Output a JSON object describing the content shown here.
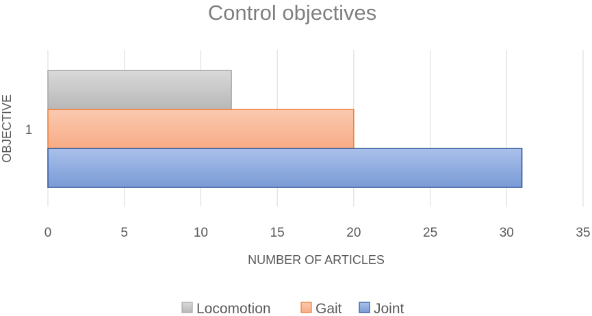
{
  "chart_data": {
    "type": "bar",
    "orientation": "horizontal",
    "title": "Control objectives",
    "xlabel": "NUMBER OF ARTICLES",
    "ylabel": "OBJECTIVE",
    "categories": [
      "1"
    ],
    "xlim": [
      0,
      35
    ],
    "x_ticks": [
      0,
      5,
      10,
      15,
      20,
      25,
      30,
      35
    ],
    "grid": true,
    "legend_position": "bottom",
    "series": [
      {
        "name": "Locomotion",
        "values": [
          12
        ],
        "color": "#c0c0c0",
        "border": "#a6a6a6"
      },
      {
        "name": "Gait",
        "values": [
          20
        ],
        "color": "#f9b797",
        "border": "#ed7d31"
      },
      {
        "name": "Joint",
        "values": [
          31
        ],
        "color": "#8faadc",
        "border": "#2f5597"
      }
    ]
  }
}
